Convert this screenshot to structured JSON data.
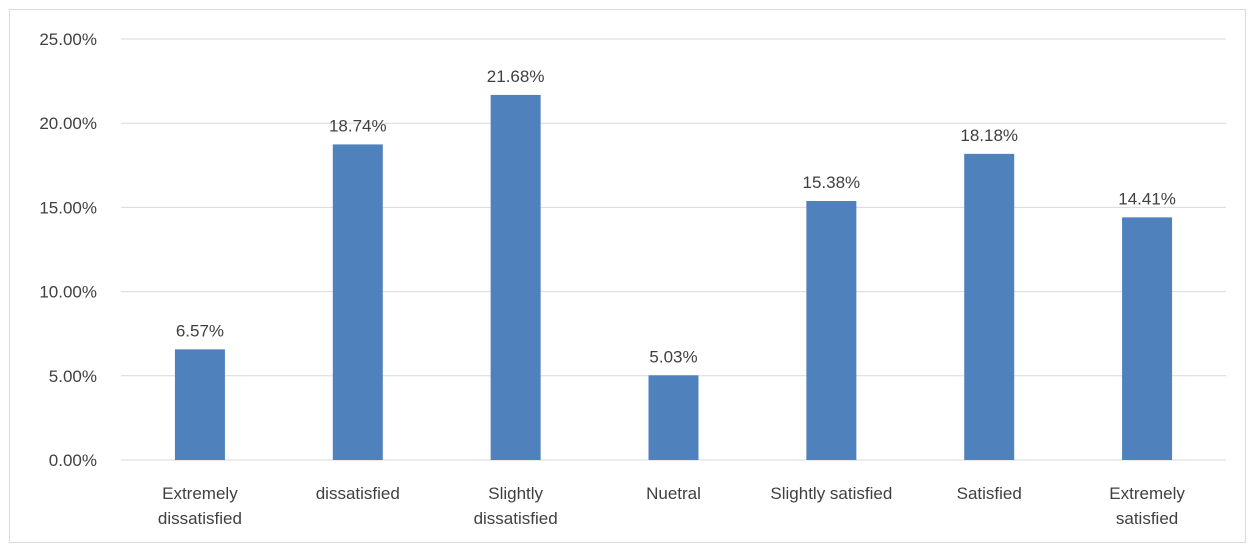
{
  "chart_data": {
    "type": "bar",
    "title": "",
    "xlabel": "",
    "ylabel": "",
    "categories": [
      [
        "Extremely",
        "dissatisfied"
      ],
      [
        "dissatisfied"
      ],
      [
        "Slightly",
        "dissatisfied"
      ],
      [
        "Nuetral"
      ],
      [
        "Slightly satisfied"
      ],
      [
        "Satisfied"
      ],
      [
        "Extremely",
        "satisfied"
      ]
    ],
    "values": [
      6.57,
      18.74,
      21.68,
      5.03,
      15.38,
      18.18,
      14.41
    ],
    "data_labels": [
      "6.57%",
      "18.74%",
      "21.68%",
      "5.03%",
      "15.38%",
      "18.18%",
      "14.41%"
    ],
    "ylim": [
      0,
      25
    ],
    "yticks": [
      0,
      5,
      10,
      15,
      20,
      25
    ],
    "ytick_labels": [
      "0.00%",
      "5.00%",
      "10.00%",
      "15.00%",
      "20.00%",
      "25.00%"
    ],
    "grid": true,
    "legend": "none",
    "colors": {
      "bar": "#4f81bd",
      "grid": "#d9d9d9",
      "text": "#404040"
    }
  }
}
